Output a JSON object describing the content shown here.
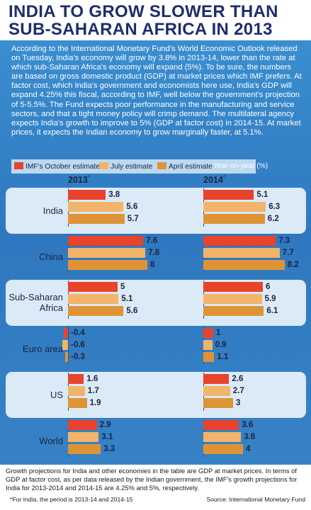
{
  "title": {
    "line1": "INDIA TO GROW SLOWER THAN",
    "line2": "SUB-SAHARAN AFRICA IN 2013"
  },
  "intro": "According to the International Monetary Fund's World Economic Outlook released on Tuesday, India's economy will grow by 3.8% in 2013-14, lower than the rate at which sub-Saharan Africa's economy will expand (5%). To be sure, the numbers are based on gross domestic product (GDP) at market prices which IMF prefers. At factor cost, which India's government and economists here use, India's GDP will expand 4.25% this fiscal, according to IMF, well below the government's projection of 5-5.5%. The Fund expects poor performance in the manufacturing and service sectors, and that a tight money policy will crimp demand. The multilateral agency expects India's growth to improve to 5% (GDP at factor cost) in 2014-15. At market prices, it expects the Indian economy to grow marginally faster, at 5.1%.",
  "footer": {
    "note": "Growth projections for India and other economies in the table are GDP at market prices. In terms of GDP at factor cost, as per data released by the Indian government, the IMF's growth projections for India for 2013-2014 and 2014-15 are 4.25% and 5%, respectively.",
    "footnote": "*For India, the period is 2013-14 and 2014-15",
    "source": "Source: International Monetary Fund"
  },
  "colors": {
    "oct": "#e8432b",
    "jul": "#f2b46a",
    "apr": "#de9436",
    "accent": "#1f2d6b"
  },
  "chart_data": {
    "type": "bar",
    "unit_label": "Year-on-year (%)",
    "legend": [
      "IMF's October estimate",
      "July estimate",
      "April estimate"
    ],
    "panels": [
      "2013",
      "2014"
    ],
    "panel_mark": "*",
    "categories": [
      "India",
      "China",
      "Sub-Saharan Africa",
      "Euro area",
      "US",
      "World"
    ],
    "category_lines": [
      [
        "India"
      ],
      [
        "China"
      ],
      [
        "Sub-Saharan",
        "Africa"
      ],
      [
        "Euro area"
      ],
      [
        "US"
      ],
      [
        "World"
      ]
    ],
    "series": [
      {
        "name": "IMF's October estimate",
        "values_2013": [
          3.8,
          7.6,
          5,
          -0.4,
          1.6,
          2.9
        ],
        "values_2014": [
          5.1,
          7.3,
          6,
          1,
          2.6,
          3.6
        ]
      },
      {
        "name": "July estimate",
        "values_2013": [
          5.6,
          7.8,
          5.1,
          -0.6,
          1.7,
          3.1
        ],
        "values_2014": [
          6.3,
          7.7,
          5.9,
          0.9,
          2.7,
          3.8
        ]
      },
      {
        "name": "April estimate",
        "values_2013": [
          5.7,
          8,
          5.6,
          -0.3,
          1.9,
          3.3
        ],
        "values_2014": [
          6.2,
          8.2,
          6.1,
          1.1,
          3,
          4
        ]
      }
    ]
  }
}
